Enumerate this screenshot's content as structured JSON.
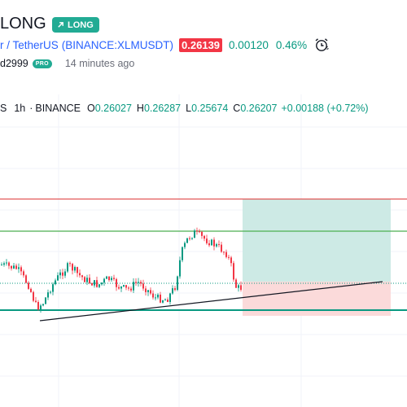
{
  "header": {
    "title": "LONG",
    "badge": "LONG"
  },
  "symbol": {
    "name": "r / TetherUS",
    "exchange": "(BINANCE:XLMUSDT)",
    "price": "0.26139",
    "change": "0.00120",
    "change_pct": "0.46%"
  },
  "author": {
    "name": "d2999",
    "pro_badge": "PRO",
    "posted": "14 minutes ago"
  },
  "legend": {
    "symbol": "S",
    "interval": "1h",
    "exchange": "BINANCE",
    "open_label": "O",
    "open": "0.26027",
    "high_label": "H",
    "high": "0.26287",
    "low_label": "L",
    "low": "0.25674",
    "close_label": "C",
    "close": "0.26207",
    "change": "+0.00188 (+0.72%)"
  },
  "colors": {
    "up": "#089981",
    "down": "#f23645",
    "accent": "#2962ff",
    "long_badge": "#22ab94",
    "target_zone": "#cdeae5",
    "stop_zone": "#fbdada"
  },
  "icons": [
    "arrow-up-right-icon",
    "alarm-clock-icon"
  ]
}
